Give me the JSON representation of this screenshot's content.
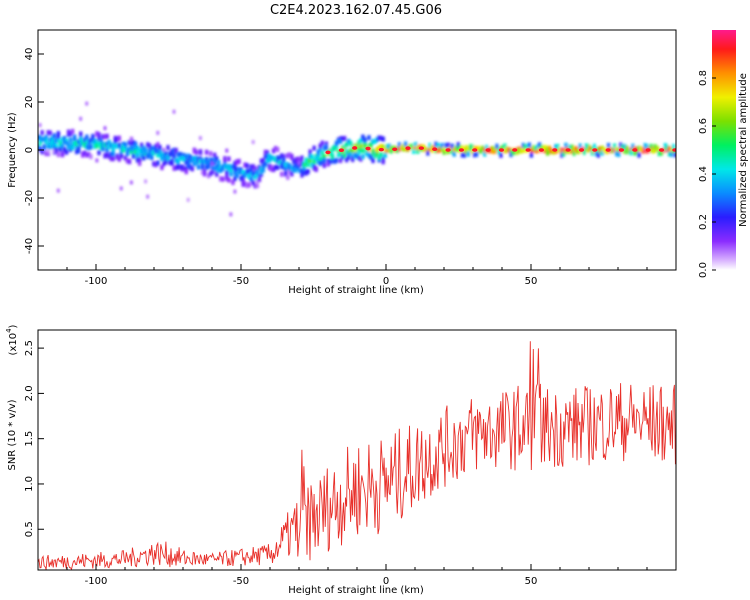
{
  "title": "C2E4.2023.162.07.45.G06",
  "chart_data": [
    {
      "type": "heatmap",
      "xlabel": "Height of straight line (km)",
      "ylabel": "Frequency (Hz)",
      "xlim": [
        -120,
        100
      ],
      "ylim": [
        -50,
        50
      ],
      "xticks": [
        -100,
        -50,
        0,
        50
      ],
      "yticks": [
        -40,
        -20,
        0,
        20,
        40
      ],
      "colorbar": {
        "label": "Normalized spectral amplitude",
        "range": [
          0,
          1
        ],
        "ticks": [
          "0.0",
          "0.2",
          "0.4",
          "0.6",
          "0.8"
        ]
      },
      "ridge": {
        "x": [
          -120,
          -110,
          -100,
          -90,
          -80,
          -70,
          -60,
          -52,
          -45,
          -40,
          -35,
          -30,
          -27,
          -20,
          -10,
          0,
          10,
          20,
          40,
          60,
          80,
          100
        ],
        "freq": [
          3,
          3,
          2,
          0,
          -2,
          -4,
          -6,
          -9,
          -11,
          -3,
          -6,
          -8,
          -5,
          -1,
          1,
          0,
          1,
          0,
          0,
          0,
          0,
          0
        ],
        "amplitude": [
          0.45,
          0.45,
          0.45,
          0.45,
          0.42,
          0.4,
          0.42,
          0.4,
          0.38,
          0.38,
          0.38,
          0.35,
          0.5,
          0.6,
          0.7,
          0.8,
          0.85,
          0.85,
          0.9,
          0.95,
          0.95,
          0.95
        ]
      },
      "grid": false
    },
    {
      "type": "line",
      "xlabel": "Height of straight line (km)",
      "ylabel": "SNR (10 * v/v)",
      "yscale_label": "(x10",
      "yscale_exp": "4",
      "xlim": [
        -120,
        100
      ],
      "ylim": [
        0.05,
        2.7
      ],
      "xticks": [
        -100,
        -50,
        0,
        50
      ],
      "yticks": [
        "0.5",
        "1.0",
        "1.5",
        "2.0",
        "2.5"
      ],
      "ytick_values": [
        0.5,
        1.0,
        1.5,
        2.0,
        2.5
      ],
      "envelope": {
        "x": [
          -120,
          -90,
          -80,
          -75,
          -70,
          -60,
          -40,
          -35,
          -30,
          -28,
          -25,
          -20,
          -10,
          0,
          10,
          20,
          30,
          40,
          50,
          60,
          70,
          80,
          90,
          100
        ],
        "center": [
          0.13,
          0.17,
          0.24,
          0.22,
          0.18,
          0.16,
          0.22,
          0.38,
          0.55,
          0.7,
          0.6,
          0.75,
          0.95,
          1.0,
          1.2,
          1.4,
          1.55,
          1.6,
          1.65,
          1.62,
          1.65,
          1.7,
          1.68,
          1.65
        ],
        "spread": [
          0.08,
          0.1,
          0.14,
          0.14,
          0.1,
          0.08,
          0.12,
          0.25,
          0.35,
          0.6,
          0.45,
          0.5,
          0.55,
          0.55,
          0.5,
          0.45,
          0.45,
          0.45,
          0.5,
          0.45,
          0.45,
          0.45,
          0.45,
          0.45
        ]
      },
      "series": [
        {
          "color": "#e8302a"
        }
      ],
      "grid": false
    }
  ]
}
